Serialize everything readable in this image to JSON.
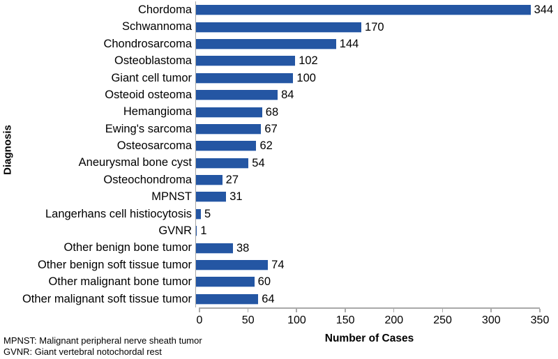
{
  "chart_data": {
    "type": "bar",
    "orientation": "horizontal",
    "categories": [
      "Chordoma",
      "Schwannoma",
      "Chondrosarcoma",
      "Osteoblastoma",
      "Giant cell tumor",
      "Osteoid osteoma",
      "Hemangioma",
      "Ewing's sarcoma",
      "Osteosarcoma",
      "Aneurysmal bone cyst",
      "Osteochondroma",
      "MPNST",
      "Langerhans cell histiocytosis",
      "GVNR",
      "Other benign bone tumor",
      "Other benign soft tissue tumor",
      "Other malignant bone tumor",
      "Other malignant soft tissue tumor"
    ],
    "values": [
      344,
      170,
      144,
      102,
      100,
      84,
      68,
      67,
      62,
      54,
      27,
      31,
      5,
      1,
      38,
      74,
      60,
      64
    ],
    "xlabel": "Number of Cases",
    "ylabel": "Diagnosis",
    "xlim": [
      0,
      350
    ],
    "xticks": [
      0,
      50,
      100,
      150,
      200,
      250,
      300,
      350
    ],
    "grid": false,
    "legend": "none",
    "bar_color": "#2456a3",
    "axis_color": "#a9a9a9"
  },
  "footnotes": [
    "MPNST: Malignant peripheral nerve sheath tumor",
    "GVNR: Giant vertebral notochordal rest"
  ]
}
